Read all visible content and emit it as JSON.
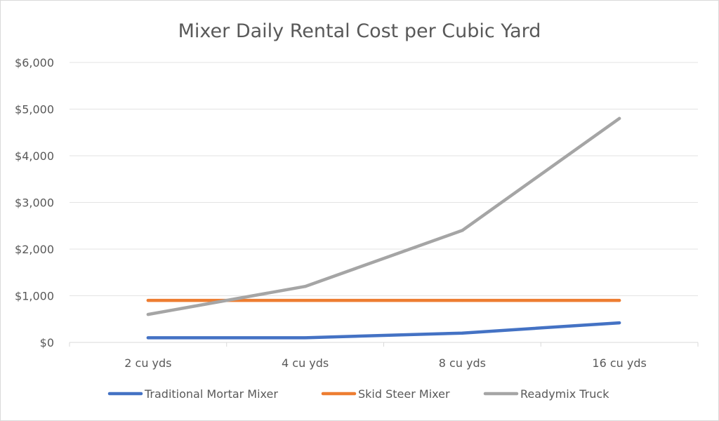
{
  "chart_data": {
    "type": "line",
    "title": "Mixer Daily Rental Cost per Cubic Yard",
    "categories": [
      "2 cu yds",
      "4 cu yds",
      "8 cu yds",
      "16 cu yds"
    ],
    "ylim": [
      0,
      6000
    ],
    "y_ticks": [
      0,
      1000,
      2000,
      3000,
      4000,
      5000,
      6000
    ],
    "y_tick_labels": [
      "$0",
      "$1,000",
      "$2,000",
      "$3,000",
      "$4,000",
      "$5,000",
      "$6,000"
    ],
    "grid": true,
    "legend_position": "bottom",
    "series": [
      {
        "name": "Traditional Mortar Mixer",
        "color": "#4472c4",
        "values": [
          100,
          100,
          200,
          420
        ]
      },
      {
        "name": "Skid Steer Mixer",
        "color": "#ed7d31",
        "values": [
          900,
          900,
          900,
          900
        ]
      },
      {
        "name": "Readymix Truck",
        "color": "#a5a5a5",
        "values": [
          600,
          1200,
          2400,
          4800
        ]
      }
    ]
  }
}
